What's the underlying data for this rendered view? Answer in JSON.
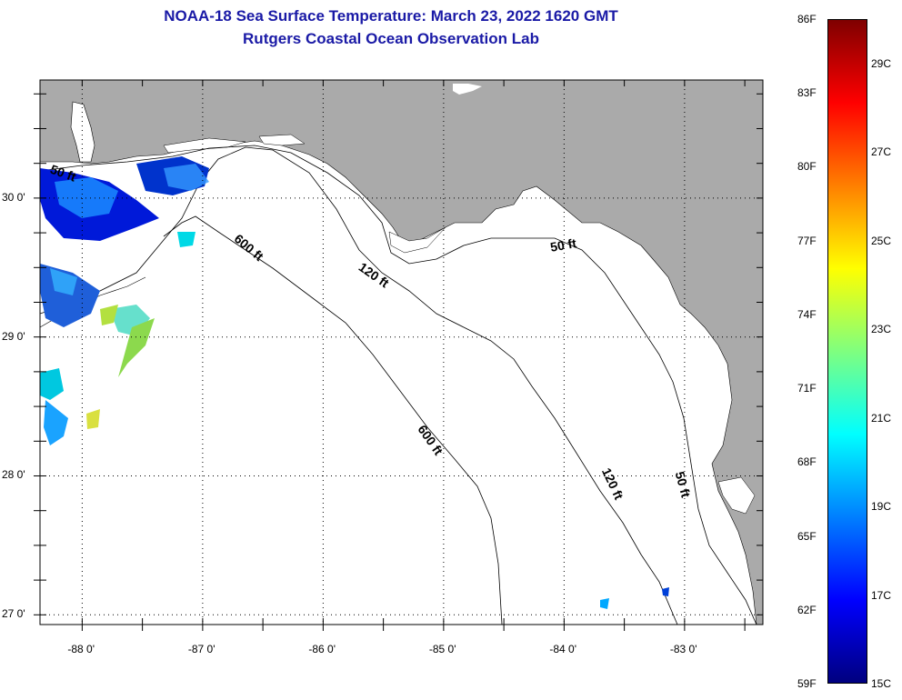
{
  "title": {
    "line1": "NOAA-18 Sea Surface Temperature:  March 23, 2022 1620 GMT",
    "line2": "Rutgers Coastal Ocean Observation Lab"
  },
  "map": {
    "lon_range": [
      -88.35,
      -82.35
    ],
    "lat_range": [
      26.93,
      30.85
    ],
    "lon_ticks": [
      {
        "value": -88,
        "label": "-88 0'"
      },
      {
        "value": -87,
        "label": "-87 0'"
      },
      {
        "value": -86,
        "label": "-86 0'"
      },
      {
        "value": -85,
        "label": "-85 0'"
      },
      {
        "value": -84,
        "label": "-84 0'"
      },
      {
        "value": -83,
        "label": "-83 0'"
      }
    ],
    "lat_ticks": [
      {
        "value": 30,
        "label": "30 0'"
      },
      {
        "value": 29,
        "label": "29 0'"
      },
      {
        "value": 28,
        "label": "28 0'"
      },
      {
        "value": 27,
        "label": "27 0'"
      }
    ],
    "grid": "dotted",
    "land_color": "#aaaaaa",
    "ocean_color": "#ffffff",
    "contour_labels": [
      {
        "text": "50 ft",
        "lon": -88.17,
        "lat": 30.15,
        "angle": 20
      },
      {
        "text": "600 ft",
        "lon": -86.64,
        "lat": 29.62,
        "angle": 40
      },
      {
        "text": "120 ft",
        "lon": -85.6,
        "lat": 29.42,
        "angle": 35
      },
      {
        "text": "50 ft",
        "lon": -84.0,
        "lat": 29.63,
        "angle": -10
      },
      {
        "text": "600 ft",
        "lon": -85.14,
        "lat": 28.24,
        "angle": 55
      },
      {
        "text": "120 ft",
        "lon": -83.63,
        "lat": 27.93,
        "angle": 65
      },
      {
        "text": "50 ft",
        "lon": -83.05,
        "lat": 27.93,
        "angle": 75
      }
    ]
  },
  "colorbar": {
    "fahrenheit_labels": [
      {
        "value": 86,
        "label": "86F"
      },
      {
        "value": 83,
        "label": "83F"
      },
      {
        "value": 80,
        "label": "80F"
      },
      {
        "value": 77,
        "label": "77F"
      },
      {
        "value": 74,
        "label": "74F"
      },
      {
        "value": 71,
        "label": "71F"
      },
      {
        "value": 68,
        "label": "68F"
      },
      {
        "value": 65,
        "label": "65F"
      },
      {
        "value": 62,
        "label": "62F"
      },
      {
        "value": 59,
        "label": "59F"
      }
    ],
    "celsius_labels": [
      {
        "value": 29,
        "label": "29C"
      },
      {
        "value": 27,
        "label": "27C"
      },
      {
        "value": 25,
        "label": "25C"
      },
      {
        "value": 23,
        "label": "23C"
      },
      {
        "value": 21,
        "label": "21C"
      },
      {
        "value": 19,
        "label": "19C"
      },
      {
        "value": 17,
        "label": "17C"
      },
      {
        "value": 15,
        "label": "15C"
      }
    ],
    "range_f": [
      59,
      86
    ],
    "colors": [
      "#00007f",
      "#0000ff",
      "#007fff",
      "#00ffff",
      "#7fff7f",
      "#ffff00",
      "#ff7f00",
      "#ff0000",
      "#7f0000"
    ]
  }
}
